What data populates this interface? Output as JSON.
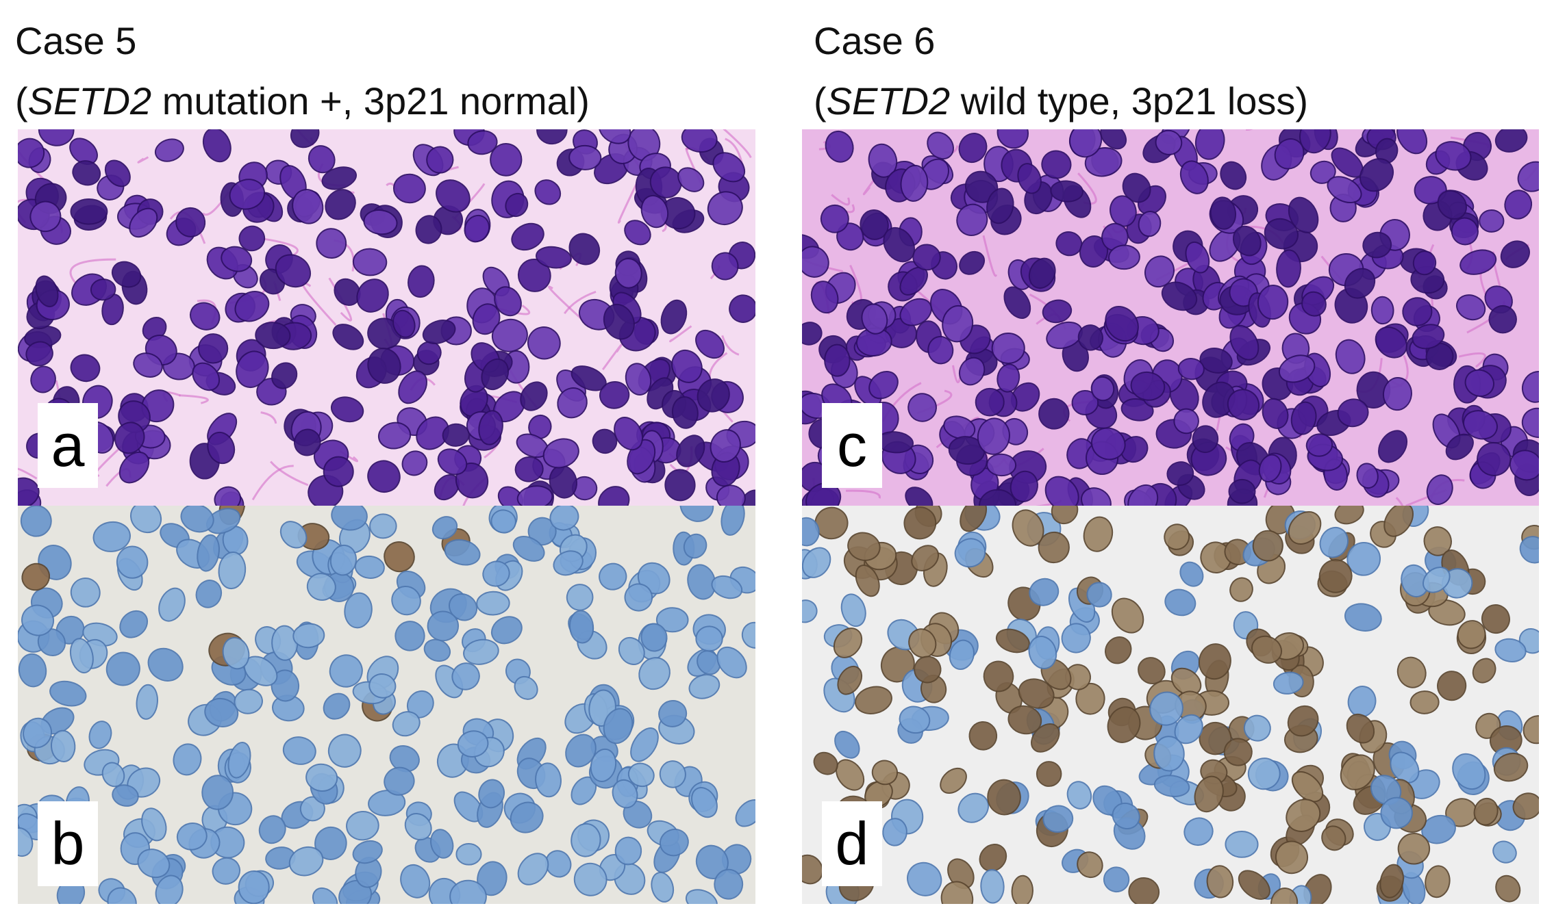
{
  "cases": [
    {
      "title": "Case 5",
      "subtitle": {
        "open": "(",
        "gene": "SETD2",
        "rest": " mutation +, 3p21 normal)"
      }
    },
    {
      "title": "Case 6",
      "subtitle": {
        "open": "(",
        "gene": "SETD2",
        "rest": " wild type, 3p21 loss)"
      }
    }
  ],
  "panels": [
    {
      "label": "a",
      "stain": "he"
    },
    {
      "label": "b",
      "stain": "ihc-negative"
    },
    {
      "label": "c",
      "stain": "he"
    },
    {
      "label": "d",
      "stain": "ihc-positive"
    }
  ]
}
